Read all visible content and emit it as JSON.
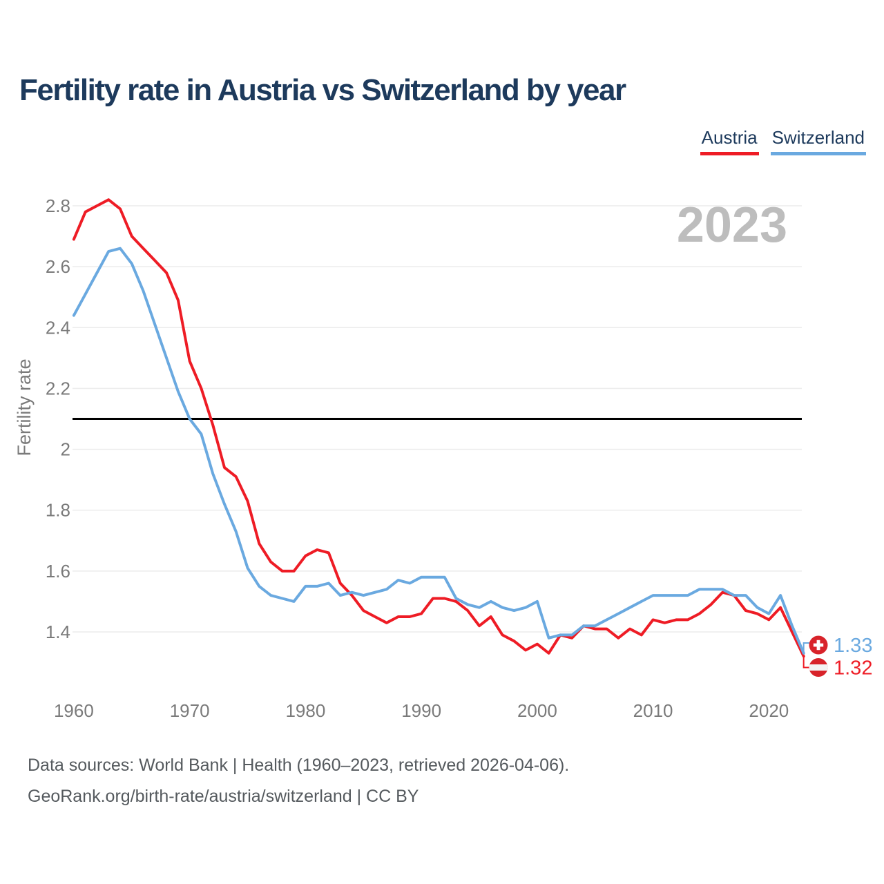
{
  "title": "Fertility rate in Austria vs Switzerland by year",
  "watermark": "2023",
  "legend": {
    "austria": {
      "label": "Austria",
      "color": "#ee1c25"
    },
    "switzerland": {
      "label": "Switzerland",
      "color": "#6aa9e0"
    }
  },
  "y_axis": {
    "title": "Fertility rate",
    "ticks": [
      2.8,
      2.6,
      2.4,
      2.2,
      2.0,
      1.8,
      1.6,
      1.4
    ],
    "tick_labels": [
      "2.8",
      "2.6",
      "2.4",
      "2.2",
      "2",
      "1.8",
      "1.6",
      "1.4"
    ],
    "label_color": "#7a7a7a",
    "grid_color": "#ececec"
  },
  "x_axis": {
    "ticks": [
      1960,
      1970,
      1980,
      1990,
      2000,
      2010,
      2020
    ],
    "tick_labels": [
      "1960",
      "1970",
      "1980",
      "1990",
      "2000",
      "2010",
      "2020"
    ],
    "label_color": "#7a7a7a"
  },
  "reference_line": {
    "value": 2.1,
    "color": "#000000"
  },
  "end_labels": [
    {
      "series": "Switzerland",
      "value": "1.33",
      "flag": "switzerland-flag",
      "text_color": "#6aa9e0",
      "flag_red": "#d8232a"
    },
    {
      "series": "Austria",
      "value": "1.32",
      "flag": "austria-flag",
      "text_color": "#ee1c25",
      "flag_red": "#d8232a"
    }
  ],
  "footer": {
    "line1": "Data sources: World Bank | Health (1960–2023, retrieved 2026-04-06).",
    "line2": "GeoRank.org/birth-rate/austria/switzerland | CC BY"
  },
  "chart_data": {
    "type": "line",
    "title": "Fertility rate in Austria vs Switzerland by year",
    "xlabel": "",
    "ylabel": "Fertility rate",
    "xlim": [
      1960,
      2023
    ],
    "ylim": [
      1.25,
      2.85
    ],
    "grid": true,
    "legend_position": "top-right",
    "reference_line": 2.1,
    "watermark": "2023",
    "x": [
      1960,
      1961,
      1962,
      1963,
      1964,
      1965,
      1966,
      1967,
      1968,
      1969,
      1970,
      1971,
      1972,
      1973,
      1974,
      1975,
      1976,
      1977,
      1978,
      1979,
      1980,
      1981,
      1982,
      1983,
      1984,
      1985,
      1986,
      1987,
      1988,
      1989,
      1990,
      1991,
      1992,
      1993,
      1994,
      1995,
      1996,
      1997,
      1998,
      1999,
      2000,
      2001,
      2002,
      2003,
      2004,
      2005,
      2006,
      2007,
      2008,
      2009,
      2010,
      2011,
      2012,
      2013,
      2014,
      2015,
      2016,
      2017,
      2018,
      2019,
      2020,
      2021,
      2022,
      2023
    ],
    "series": [
      {
        "name": "Austria",
        "color": "#ee1c25",
        "end_label": "1.32",
        "values": [
          2.69,
          2.78,
          2.8,
          2.82,
          2.79,
          2.7,
          2.66,
          2.62,
          2.58,
          2.49,
          2.29,
          2.2,
          2.08,
          1.94,
          1.91,
          1.83,
          1.69,
          1.63,
          1.6,
          1.6,
          1.65,
          1.67,
          1.66,
          1.56,
          1.52,
          1.47,
          1.45,
          1.43,
          1.45,
          1.45,
          1.46,
          1.51,
          1.51,
          1.5,
          1.47,
          1.42,
          1.45,
          1.39,
          1.37,
          1.34,
          1.36,
          1.33,
          1.39,
          1.38,
          1.42,
          1.41,
          1.41,
          1.38,
          1.41,
          1.39,
          1.44,
          1.43,
          1.44,
          1.44,
          1.46,
          1.49,
          1.53,
          1.52,
          1.47,
          1.46,
          1.44,
          1.48,
          1.4,
          1.32
        ]
      },
      {
        "name": "Switzerland",
        "color": "#6aa9e0",
        "end_label": "1.33",
        "values": [
          2.44,
          2.51,
          2.58,
          2.65,
          2.66,
          2.61,
          2.52,
          2.41,
          2.3,
          2.19,
          2.1,
          2.05,
          1.92,
          1.82,
          1.73,
          1.61,
          1.55,
          1.52,
          1.51,
          1.5,
          1.55,
          1.55,
          1.56,
          1.52,
          1.53,
          1.52,
          1.53,
          1.54,
          1.57,
          1.56,
          1.58,
          1.58,
          1.58,
          1.51,
          1.49,
          1.48,
          1.5,
          1.48,
          1.47,
          1.48,
          1.5,
          1.38,
          1.39,
          1.39,
          1.42,
          1.42,
          1.44,
          1.46,
          1.48,
          1.5,
          1.52,
          1.52,
          1.52,
          1.52,
          1.54,
          1.54,
          1.54,
          1.52,
          1.52,
          1.48,
          1.46,
          1.52,
          1.42,
          1.33
        ]
      }
    ]
  }
}
